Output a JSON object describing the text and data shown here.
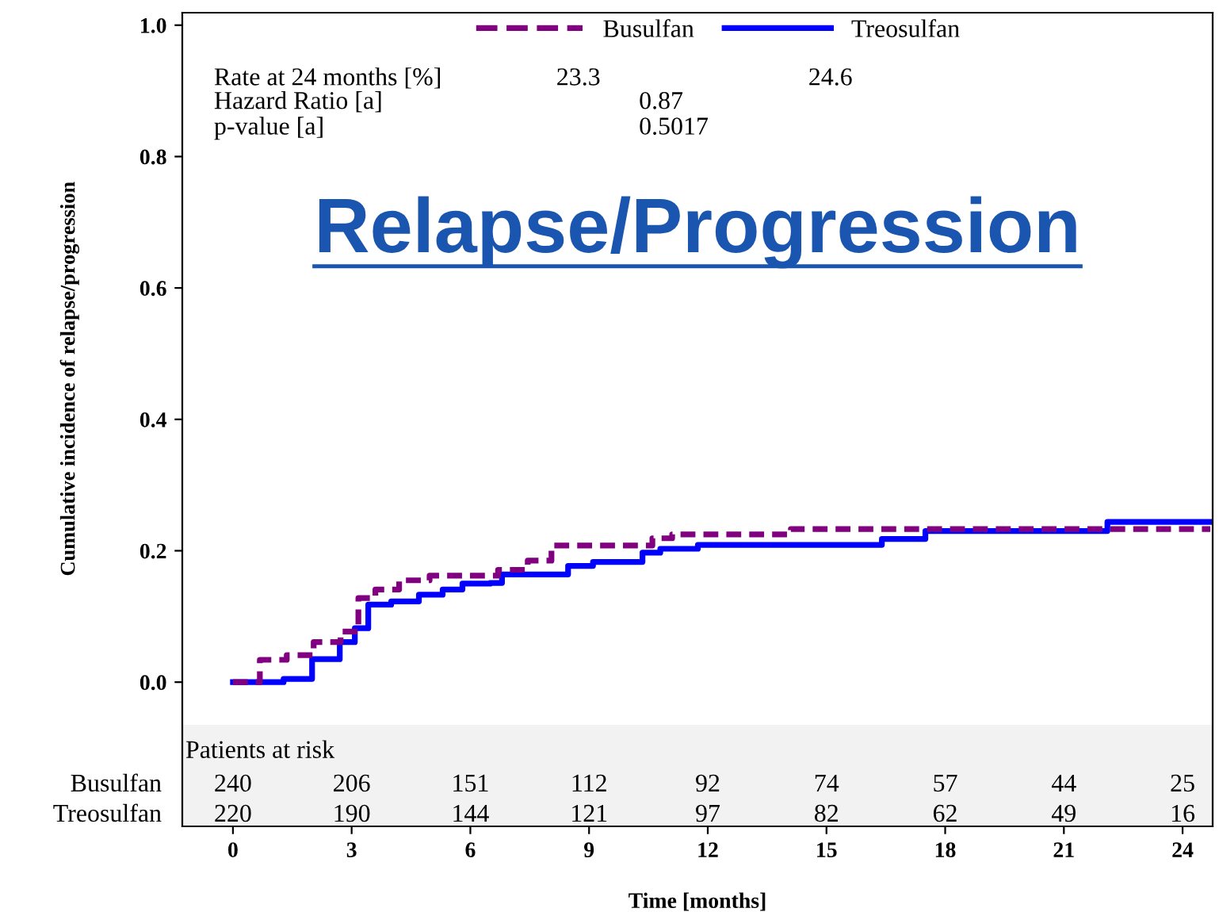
{
  "chart_data": {
    "type": "step",
    "title": "Relapse/Progression",
    "xlabel": "Time [months]",
    "ylabel": "Cumulative incidence of relapse/progression",
    "xlim": [
      -1.28,
      24.76
    ],
    "xticks": [
      0,
      3,
      6,
      9,
      12,
      15,
      18,
      21,
      24
    ],
    "ylim": [
      -0.2195,
      1.019
    ],
    "bands": [
      {
        "axis": "y",
        "from": -0.2195,
        "to": -0.065,
        "color": "#f2f2f2"
      }
    ],
    "yticks": [
      {
        "value": 0,
        "label": "0.0"
      },
      0.2,
      0.4,
      0.6,
      0.8,
      {
        "value": 1,
        "label": "1.0"
      }
    ],
    "grid": false,
    "legend": "top",
    "marker": "none",
    "series": [
      {
        "name": "Busulfan",
        "color": "#800080",
        "line_style": "dashed",
        "x": [
          0,
          0.68,
          1.36,
          2.04,
          2.72,
          3.17,
          3.6,
          4.2,
          4.97,
          6.7,
          7.45,
          8.05,
          10.6,
          11.1,
          14.1,
          24.7
        ],
        "values": [
          0,
          0.034,
          0.041,
          0.061,
          0.077,
          0.128,
          0.141,
          0.155,
          0.162,
          0.171,
          0.185,
          0.208,
          0.219,
          0.225,
          0.233,
          0.233
        ]
      },
      {
        "name": "Treosulfan",
        "color": "#0000ff",
        "line_style": "solid",
        "x": [
          0,
          1.28,
          2.0,
          2.7,
          3.08,
          3.42,
          4.0,
          4.7,
          5.3,
          5.8,
          6.5,
          6.8,
          8.47,
          9.1,
          10.35,
          10.8,
          11.75,
          16.4,
          17.5,
          22.1,
          24.7
        ],
        "values": [
          0,
          0.005,
          0.035,
          0.061,
          0.082,
          0.118,
          0.123,
          0.133,
          0.141,
          0.15,
          0.151,
          0.164,
          0.177,
          0.183,
          0.197,
          0.203,
          0.209,
          0.218,
          0.23,
          0.244,
          0.244
        ]
      }
    ],
    "annotations": [
      "Rate at 24 months [%]",
      "23.3",
      "24.6",
      "Hazard Ratio [a]",
      "0.87",
      "p-value [a]",
      "0.5017",
      "Patients at risk",
      "Busulfan",
      "240",
      "206",
      "151",
      "112",
      "92",
      "74",
      "57",
      "44",
      "25",
      "Treosulfan",
      "220",
      "190",
      "144",
      "121",
      "97",
      "82",
      "62",
      "49",
      "16"
    ]
  }
}
